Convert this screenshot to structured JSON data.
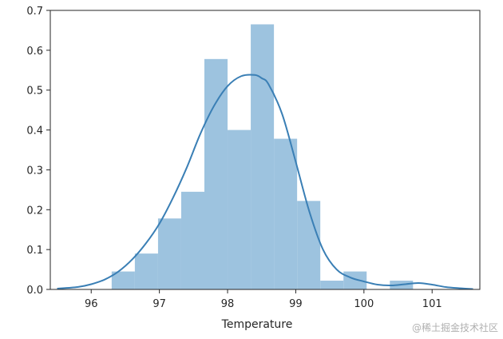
{
  "chart_data": {
    "type": "bar",
    "xlabel": "Temperature",
    "ylabel": "",
    "xlim": [
      95.4,
      101.7
    ],
    "ylim": [
      0,
      0.7
    ],
    "xticks": [
      96,
      97,
      98,
      99,
      100,
      101
    ],
    "yticks": [
      0.0,
      0.1,
      0.2,
      0.3,
      0.4,
      0.5,
      0.6,
      0.7
    ],
    "grid": false,
    "bar_color": "#9dc3df",
    "line_color": "#3a7fb5",
    "bins": [
      {
        "x0": 96.3,
        "x1": 96.64,
        "value": 0.045
      },
      {
        "x0": 96.64,
        "x1": 96.98,
        "value": 0.09
      },
      {
        "x0": 96.98,
        "x1": 97.32,
        "value": 0.178
      },
      {
        "x0": 97.32,
        "x1": 97.66,
        "value": 0.245
      },
      {
        "x0": 97.66,
        "x1": 98.0,
        "value": 0.578
      },
      {
        "x0": 98.0,
        "x1": 98.34,
        "value": 0.4
      },
      {
        "x0": 98.34,
        "x1": 98.68,
        "value": 0.665
      },
      {
        "x0": 98.68,
        "x1": 99.02,
        "value": 0.378
      },
      {
        "x0": 99.02,
        "x1": 99.36,
        "value": 0.222
      },
      {
        "x0": 99.36,
        "x1": 99.7,
        "value": 0.022
      },
      {
        "x0": 99.7,
        "x1": 100.04,
        "value": 0.045
      },
      {
        "x0": 100.04,
        "x1": 100.38,
        "value": 0.0
      },
      {
        "x0": 100.38,
        "x1": 100.72,
        "value": 0.022
      }
    ],
    "kde": {
      "x": [
        95.5,
        95.8,
        96.0,
        96.2,
        96.4,
        96.6,
        96.8,
        97.0,
        97.2,
        97.4,
        97.6,
        97.8,
        98.0,
        98.2,
        98.4,
        98.5,
        98.6,
        98.8,
        99.0,
        99.2,
        99.4,
        99.6,
        99.8,
        100.0,
        100.2,
        100.4,
        100.6,
        100.8,
        101.0,
        101.2,
        101.4,
        101.6
      ],
      "y": [
        0.002,
        0.006,
        0.013,
        0.025,
        0.045,
        0.075,
        0.115,
        0.165,
        0.23,
        0.305,
        0.39,
        0.46,
        0.51,
        0.535,
        0.538,
        0.53,
        0.515,
        0.44,
        0.32,
        0.195,
        0.1,
        0.05,
        0.03,
        0.02,
        0.012,
        0.01,
        0.013,
        0.016,
        0.012,
        0.006,
        0.003,
        0.001
      ]
    }
  },
  "watermark": "@稀土掘金技术社区"
}
